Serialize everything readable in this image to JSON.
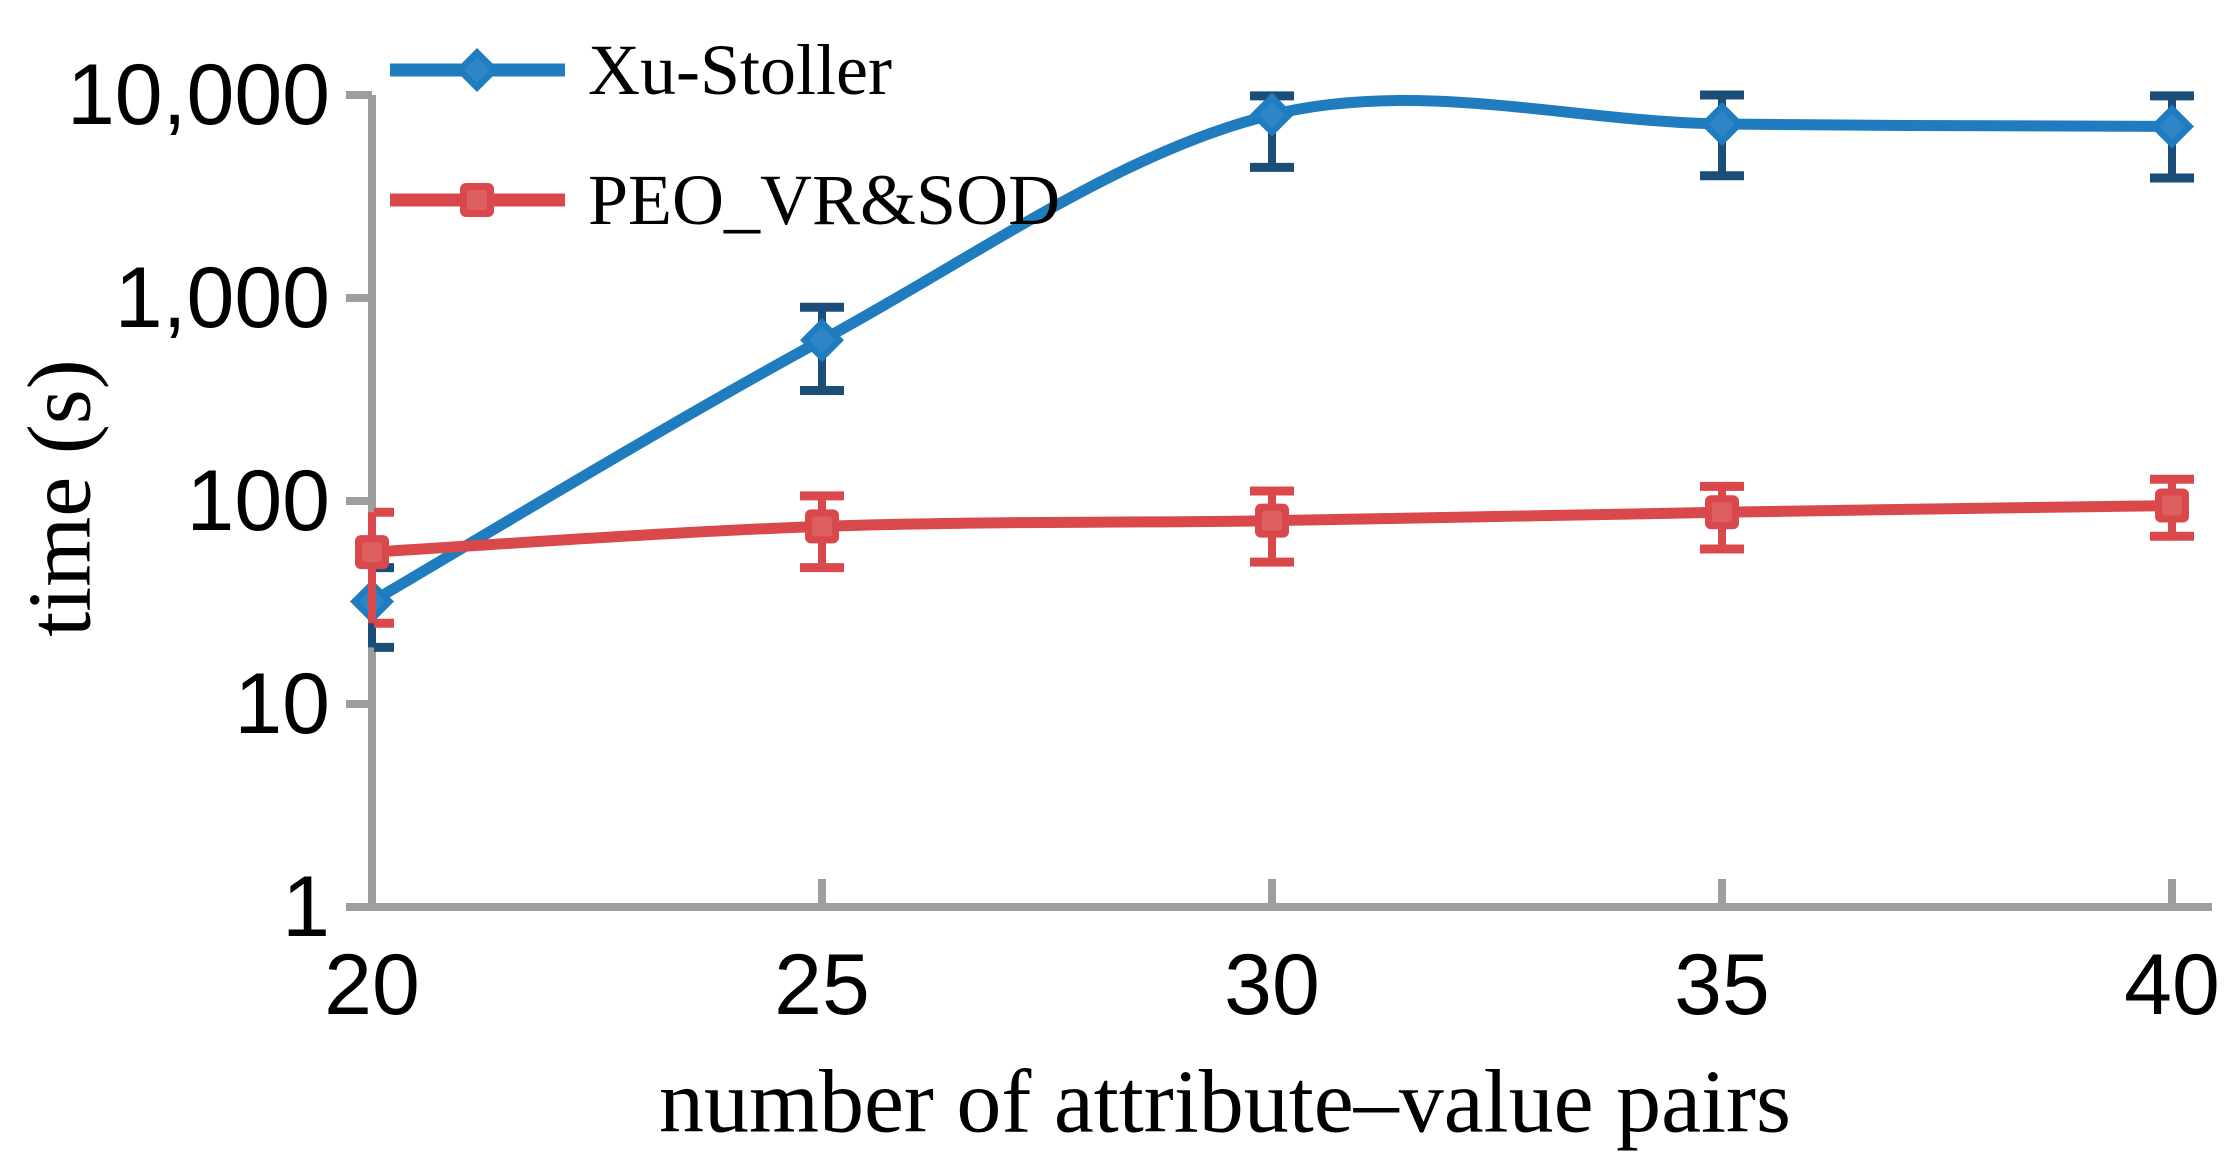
{
  "chart_data": {
    "type": "line",
    "title": "",
    "xlabel": "number of attribute–value pairs",
    "ylabel": "time (s)",
    "x": [
      20,
      25,
      30,
      35,
      40
    ],
    "x_tick_labels": [
      "20",
      "25",
      "30",
      "35",
      "40"
    ],
    "xlim": [
      20,
      40
    ],
    "y_scale": "log10",
    "ylim": [
      1,
      10000
    ],
    "y_ticks": [
      {
        "value": 10000,
        "label": "10,000"
      },
      {
        "value": 1000,
        "label": "1,000"
      },
      {
        "value": 100,
        "label": "100"
      },
      {
        "value": 10,
        "label": "10"
      },
      {
        "value": 1,
        "label": "1"
      }
    ],
    "grid": false,
    "legend_position": "top-left-inside",
    "series": [
      {
        "name": "Xu-Stoller",
        "marker": "diamond",
        "color": "#1F7CBE",
        "marker_inner_color": "#2E86C8",
        "error_color": "#1A4E79",
        "smooth": true,
        "values": [
          32,
          620,
          8000,
          7200,
          7000
        ],
        "error_low": [
          19,
          350,
          4400,
          4000,
          3900
        ],
        "error_high": [
          47,
          900,
          9900,
          10000,
          9900
        ]
      },
      {
        "name": "PEO_VR&SOD",
        "marker": "square",
        "color": "#D9494B",
        "marker_inner_color": "#DE5F60",
        "error_color": "#D9494B",
        "smooth": true,
        "values": [
          56,
          75,
          80,
          88,
          95
        ],
        "error_low": [
          25,
          47,
          50,
          58,
          67
        ],
        "error_high": [
          88,
          106,
          112,
          118,
          128
        ]
      }
    ],
    "axis_color": "#9E9E9E",
    "text_color": "#000000",
    "background_color": "#FFFFFF"
  }
}
